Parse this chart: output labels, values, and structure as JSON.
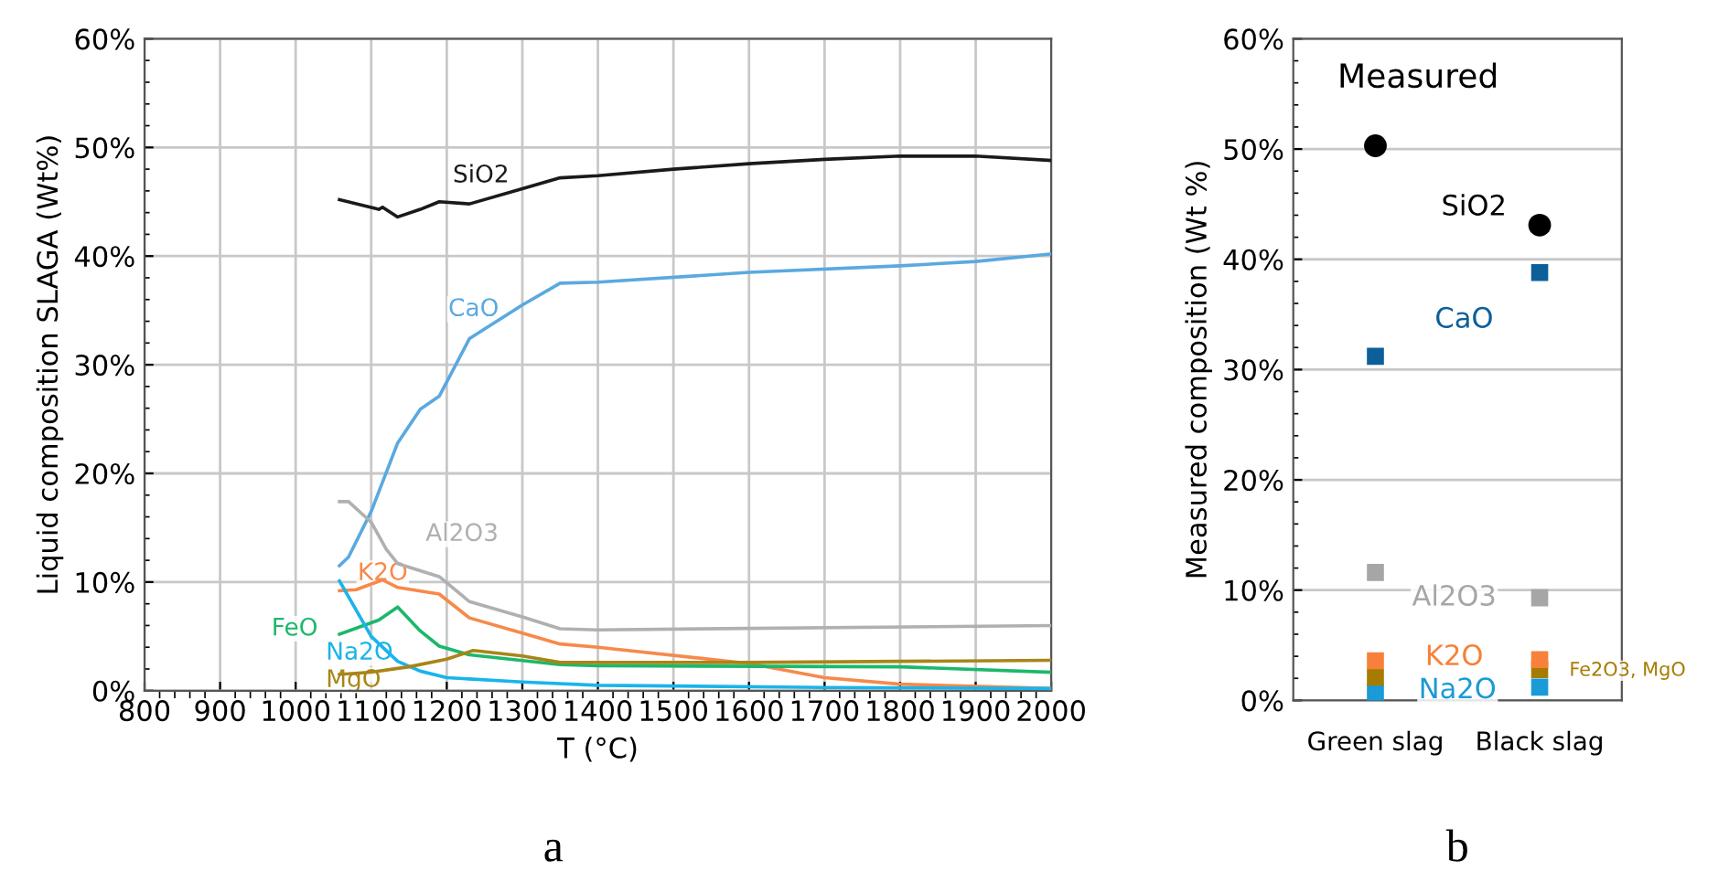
{
  "chart_data": [
    {
      "type": "line",
      "xlabel": "T (°C)",
      "ylabel": "Liquid composition SLAGA (Wt%)",
      "xlim": [
        800,
        2000
      ],
      "xticks": [
        800,
        900,
        1000,
        1100,
        1200,
        1300,
        1400,
        1500,
        1600,
        1700,
        1800,
        1900,
        2000
      ],
      "ylim": [
        0,
        60
      ],
      "yticks": [
        {
          "value": 0,
          "label": "0%"
        },
        {
          "value": 10,
          "label": "10%"
        },
        {
          "value": 20,
          "label": "20%"
        },
        {
          "value": 30,
          "label": "30%"
        },
        {
          "value": 40,
          "label": "40%"
        },
        {
          "value": 50,
          "label": "50%"
        },
        {
          "value": 60,
          "label": "60%"
        }
      ],
      "grid": true,
      "legend": false,
      "marker": "none",
      "line_style": "solid",
      "annotations": [
        "a"
      ],
      "series": [
        {
          "name": "SiO2",
          "color": "#1a1a1a",
          "x": [
            1058,
            1110,
            1115,
            1135,
            1165,
            1190,
            1230,
            1300,
            1350,
            1400,
            1500,
            1600,
            1700,
            1800,
            1900,
            2000
          ],
          "values": [
            45.2,
            44.3,
            44.5,
            43.6,
            44.3,
            45.0,
            44.8,
            46.2,
            47.2,
            47.4,
            48.0,
            48.5,
            48.9,
            49.2,
            49.2,
            48.8
          ]
        },
        {
          "name": "CaO",
          "color": "#5aa9e0",
          "x": [
            1058,
            1070,
            1100,
            1135,
            1165,
            1190,
            1230,
            1300,
            1350,
            1400,
            1600,
            1800,
            1900,
            2000
          ],
          "values": [
            11.5,
            12.3,
            16.5,
            22.8,
            25.9,
            27.1,
            32.4,
            35.5,
            37.5,
            37.6,
            38.5,
            39.1,
            39.5,
            40.2
          ]
        },
        {
          "name": "Al2O3",
          "color": "#b0b0b0",
          "x": [
            1058,
            1070,
            1100,
            1120,
            1135,
            1190,
            1230,
            1300,
            1350,
            1400,
            2000
          ],
          "values": [
            17.4,
            17.4,
            15.5,
            13.0,
            11.7,
            10.5,
            8.2,
            6.8,
            5.7,
            5.6,
            6.0
          ]
        },
        {
          "name": "K2O",
          "color": "#f7894a",
          "x": [
            1058,
            1080,
            1115,
            1135,
            1190,
            1230,
            1300,
            1350,
            1400,
            1600,
            1700,
            1800,
            2000
          ],
          "values": [
            9.2,
            9.3,
            10.2,
            9.5,
            8.9,
            6.7,
            5.3,
            4.3,
            4.0,
            2.5,
            1.2,
            0.6,
            0.2
          ]
        },
        {
          "name": "FeO",
          "color": "#1cb86a",
          "x": [
            1058,
            1110,
            1135,
            1165,
            1190,
            1230,
            1350,
            1400,
            1800,
            2000
          ],
          "values": [
            5.2,
            6.5,
            7.7,
            5.5,
            4.1,
            3.3,
            2.4,
            2.3,
            2.2,
            1.7
          ]
        },
        {
          "name": "Na2O",
          "color": "#1ab4ea",
          "x": [
            1058,
            1100,
            1135,
            1165,
            1200,
            1300,
            1400,
            1700,
            2000
          ],
          "values": [
            10.1,
            5.0,
            2.7,
            1.8,
            1.2,
            0.8,
            0.5,
            0.3,
            0.2
          ]
        },
        {
          "name": "MgO",
          "color": "#a88518",
          "x": [
            1058,
            1100,
            1150,
            1200,
            1235,
            1300,
            1350,
            1600,
            2000
          ],
          "values": [
            1.5,
            1.7,
            2.2,
            2.9,
            3.7,
            3.2,
            2.6,
            2.6,
            2.8
          ]
        }
      ]
    },
    {
      "type": "scatter",
      "title": "Measured",
      "ylabel": "Measured composition (Wt %)",
      "categories": [
        "Green slag",
        "Black slag"
      ],
      "ylim": [
        0,
        60
      ],
      "yticks": [
        {
          "value": 0,
          "label": "0%"
        },
        {
          "value": 10,
          "label": "10%"
        },
        {
          "value": 20,
          "label": "20%"
        },
        {
          "value": 30,
          "label": "30%"
        },
        {
          "value": 40,
          "label": "40%"
        },
        {
          "value": 50,
          "label": "50%"
        },
        {
          "value": 60,
          "label": "60%"
        }
      ],
      "grid": "y",
      "legend": false,
      "annotations": [
        "b"
      ],
      "series": [
        {
          "name": "SiO2",
          "color": "#000000",
          "marker": "circle",
          "values": [
            50.3,
            43.1
          ]
        },
        {
          "name": "CaO",
          "color": "#0d5f99",
          "marker": "square",
          "values": [
            31.2,
            38.8
          ]
        },
        {
          "name": "Al2O3",
          "color": "#a6a6a6",
          "marker": "square",
          "values": [
            11.6,
            9.3
          ]
        },
        {
          "name": "K2O",
          "color": "#f7813a",
          "marker": "square",
          "values": [
            3.6,
            3.7
          ]
        },
        {
          "name": "Fe2O3, MgO",
          "color": "#a67c00",
          "marker": "square",
          "values": [
            2.1,
            2.8
          ]
        },
        {
          "name": "Na2O",
          "color": "#1a9ad6",
          "marker": "square",
          "values": [
            0.7,
            1.2
          ]
        }
      ]
    }
  ]
}
